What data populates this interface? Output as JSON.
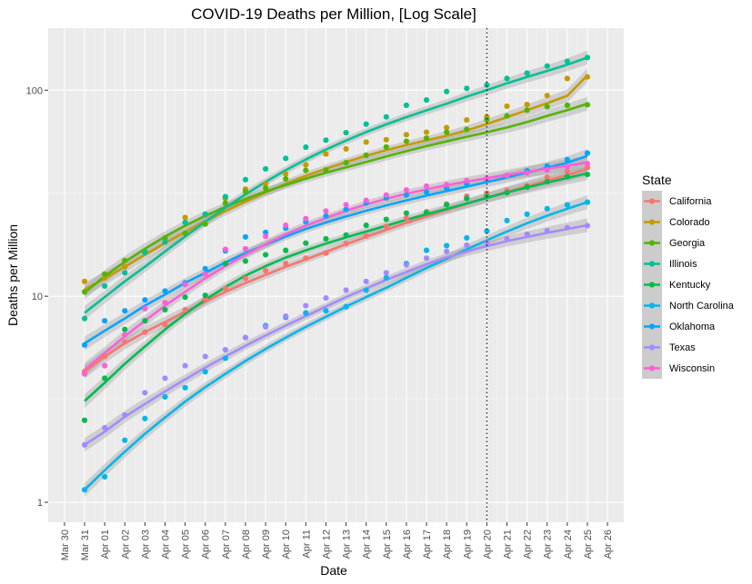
{
  "chart_data": {
    "type": "line",
    "title": "COVID-19 Deaths per Million, [Log Scale]",
    "xlabel": "Date",
    "ylabel": "Deaths per Million",
    "y_scale": "log10",
    "ylim": [
      0.8,
      200
    ],
    "xlim": [
      "2020-03-30",
      "2020-04-26"
    ],
    "x_ticks": [
      "Mar 30",
      "Mar 31",
      "Apr 01",
      "Apr 02",
      "Apr 03",
      "Apr 04",
      "Apr 05",
      "Apr 06",
      "Apr 07",
      "Apr 08",
      "Apr 09",
      "Apr 10",
      "Apr 11",
      "Apr 12",
      "Apr 13",
      "Apr 14",
      "Apr 15",
      "Apr 16",
      "Apr 17",
      "Apr 18",
      "Apr 19",
      "Apr 20",
      "Apr 21",
      "Apr 22",
      "Apr 23",
      "Apr 24",
      "Apr 25",
      "Apr 26"
    ],
    "y_ticks": [
      1,
      10,
      100
    ],
    "y_tick_labels": [
      "1",
      "10",
      "100"
    ],
    "vline": {
      "x": "2020-04-20",
      "style": "dotted"
    },
    "legend": {
      "title": "State",
      "position": "right"
    },
    "x": [
      "Mar 31",
      "Apr 01",
      "Apr 02",
      "Apr 03",
      "Apr 04",
      "Apr 05",
      "Apr 06",
      "Apr 07",
      "Apr 08",
      "Apr 09",
      "Apr 10",
      "Apr 11",
      "Apr 12",
      "Apr 13",
      "Apr 14",
      "Apr 15",
      "Apr 16",
      "Apr 17",
      "Apr 18",
      "Apr 19",
      "Apr 20",
      "Apr 21",
      "Apr 22",
      "Apr 23",
      "Apr 24",
      "Apr 25"
    ],
    "series": [
      {
        "name": "California",
        "color": "#F8766D",
        "points": [
          4.3,
          5.1,
          6.0,
          6.7,
          7.3,
          8.6,
          9.7,
          10.9,
          12.2,
          13.3,
          14.4,
          15.3,
          16.2,
          18.0,
          19.6,
          21.8,
          23.9,
          25.7,
          28.0,
          30.6,
          31.7,
          32.7,
          34.4,
          37.8,
          40.2,
          42.1
        ],
        "fit": [
          4.3,
          5.1,
          5.9,
          6.7,
          7.5,
          8.4,
          9.4,
          10.5,
          11.6,
          12.7,
          13.9,
          15.1,
          16.4,
          17.9,
          19.4,
          21.0,
          22.7,
          24.4,
          26.2,
          28.1,
          30.1,
          32.1,
          34.2,
          36.4,
          38.7,
          41.4
        ]
      },
      {
        "name": "Colorado",
        "color": "#C49A00",
        "points": [
          11.8,
          12.3,
          13.9,
          16.3,
          18.9,
          24.1,
          24.8,
          29.8,
          33.1,
          35.1,
          39.2,
          43.4,
          49.0,
          51.9,
          56.0,
          57.5,
          60.8,
          62.5,
          65.8,
          71.7,
          74.3,
          83.6,
          85.2,
          94.2,
          114.0,
          116.0
        ],
        "fit": [
          10.8,
          12.2,
          13.9,
          15.9,
          18.1,
          20.5,
          23.1,
          25.9,
          28.8,
          31.9,
          35.1,
          38.4,
          41.6,
          44.8,
          48.0,
          51.1,
          54.1,
          57.1,
          60.1,
          63.8,
          68.5,
          74.0,
          80.0,
          86.5,
          94.0,
          118.0
        ]
      },
      {
        "name": "Georgia",
        "color": "#53B400",
        "points": [
          10.5,
          12.8,
          14.9,
          16.5,
          19.2,
          20.2,
          22.4,
          28.3,
          32.2,
          33.5,
          37.1,
          40.8,
          41.0,
          44.5,
          48.3,
          53.0,
          56.5,
          58.5,
          62.5,
          64.5,
          72.0,
          75.0,
          80.0,
          83.1,
          84.5,
          85.0
        ],
        "fit": [
          10.4,
          12.5,
          14.7,
          17.0,
          19.5,
          22.0,
          24.6,
          27.1,
          29.6,
          32.2,
          34.7,
          37.2,
          39.7,
          42.2,
          44.9,
          47.7,
          50.6,
          53.5,
          56.4,
          59.4,
          62.5,
          65.9,
          70.0,
          75.0,
          80.0,
          86.0
        ]
      },
      {
        "name": "Illinois",
        "color": "#00C094",
        "points": [
          7.8,
          11.2,
          13.0,
          16.3,
          18.3,
          22.8,
          25.0,
          30.4,
          36.8,
          41.5,
          46.7,
          52.9,
          57.2,
          62.2,
          68.4,
          74.2,
          84.5,
          89.6,
          98.5,
          102.0,
          106.0,
          114.0,
          121.0,
          131.0,
          138.0,
          144.0
        ],
        "fit": [
          8.3,
          9.9,
          11.8,
          13.9,
          16.5,
          19.5,
          23.0,
          26.9,
          31.2,
          35.9,
          40.9,
          46.1,
          51.5,
          57.0,
          62.6,
          68.3,
          74.0,
          79.8,
          86.0,
          93.0,
          100.0,
          108.0,
          116.0,
          124.0,
          133.0,
          144.0
        ]
      },
      {
        "name": "Kentucky",
        "color": "#00BB4E",
        "points": [
          2.5,
          4.0,
          6.9,
          7.6,
          8.6,
          9.9,
          10.1,
          14.4,
          14.8,
          15.9,
          16.7,
          18.1,
          19.0,
          19.8,
          22.1,
          23.6,
          25.3,
          25.5,
          27.8,
          29.8,
          30.5,
          31.8,
          33.9,
          36.0,
          38.0,
          39.0
        ],
        "fit": [
          3.1,
          3.8,
          4.7,
          5.7,
          6.9,
          8.2,
          9.6,
          11.1,
          12.6,
          14.0,
          15.4,
          16.7,
          18.0,
          19.3,
          20.6,
          22.0,
          23.5,
          25.0,
          26.5,
          28.2,
          30.0,
          31.9,
          33.7,
          35.6,
          37.5,
          39.5
        ]
      },
      {
        "name": "North Carolina",
        "color": "#00B6EB",
        "points": [
          1.15,
          1.33,
          2.0,
          2.55,
          3.25,
          3.6,
          4.3,
          5.0,
          6.3,
          7.2,
          7.9,
          8.3,
          8.5,
          8.9,
          10.7,
          12.3,
          14.4,
          16.7,
          17.6,
          19.2,
          20.7,
          23.3,
          25.0,
          26.6,
          27.8,
          28.6
        ],
        "fit": [
          1.15,
          1.43,
          1.76,
          2.15,
          2.58,
          3.08,
          3.62,
          4.2,
          4.85,
          5.55,
          6.3,
          7.1,
          7.95,
          8.9,
          9.9,
          11.0,
          12.3,
          13.7,
          15.2,
          16.9,
          18.7,
          20.6,
          22.6,
          24.6,
          26.6,
          28.6
        ]
      },
      {
        "name": "Oklahoma",
        "color": "#06A4FF",
        "points": [
          5.8,
          7.6,
          8.5,
          9.6,
          10.6,
          11.6,
          13.6,
          16.6,
          19.4,
          20.4,
          21.4,
          23.0,
          24.5,
          26.4,
          28.3,
          30.0,
          31.0,
          32.0,
          33.5,
          35.0,
          36.8,
          38.5,
          40.6,
          42.8,
          46.0,
          49.5
        ],
        "fit": [
          5.9,
          6.8,
          7.8,
          9.0,
          10.2,
          11.6,
          13.0,
          14.6,
          16.2,
          17.8,
          19.5,
          21.2,
          22.8,
          24.4,
          26.0,
          27.6,
          29.2,
          30.8,
          32.4,
          34.0,
          35.8,
          37.7,
          39.8,
          42.0,
          44.5,
          48.0
        ]
      },
      {
        "name": "Texas",
        "color": "#A58AFF",
        "points": [
          1.9,
          2.3,
          2.65,
          3.4,
          4.0,
          4.6,
          5.1,
          5.5,
          6.3,
          7.1,
          8.0,
          9.0,
          9.8,
          10.7,
          11.8,
          13.0,
          14.2,
          15.3,
          16.5,
          17.7,
          18.2,
          19.0,
          20.0,
          20.8,
          21.5,
          22.0
        ],
        "fit": [
          1.9,
          2.2,
          2.6,
          3.0,
          3.45,
          3.95,
          4.5,
          5.1,
          5.75,
          6.45,
          7.2,
          8.0,
          8.9,
          9.9,
          10.9,
          12.0,
          13.1,
          14.3,
          15.4,
          16.5,
          17.5,
          18.5,
          19.4,
          20.3,
          21.2,
          22.1
        ]
      },
      {
        "name": "Wisconsin",
        "color": "#FB61D7",
        "points": [
          4.2,
          4.6,
          6.5,
          8.7,
          9.3,
          11.4,
          12.8,
          16.9,
          17.0,
          19.5,
          22.1,
          23.8,
          25.9,
          27.8,
          29.2,
          31.0,
          32.8,
          34.2,
          34.8,
          36.4,
          37.4,
          38.6,
          39.6,
          41.0,
          42.3,
          44.0
        ],
        "fit": [
          4.4,
          5.3,
          6.4,
          7.6,
          9.0,
          10.5,
          12.2,
          14.0,
          15.9,
          17.9,
          20.0,
          22.0,
          24.0,
          26.0,
          27.9,
          29.7,
          31.4,
          33.0,
          34.6,
          36.0,
          37.4,
          38.8,
          40.2,
          41.6,
          43.0,
          44.6
        ]
      }
    ]
  }
}
